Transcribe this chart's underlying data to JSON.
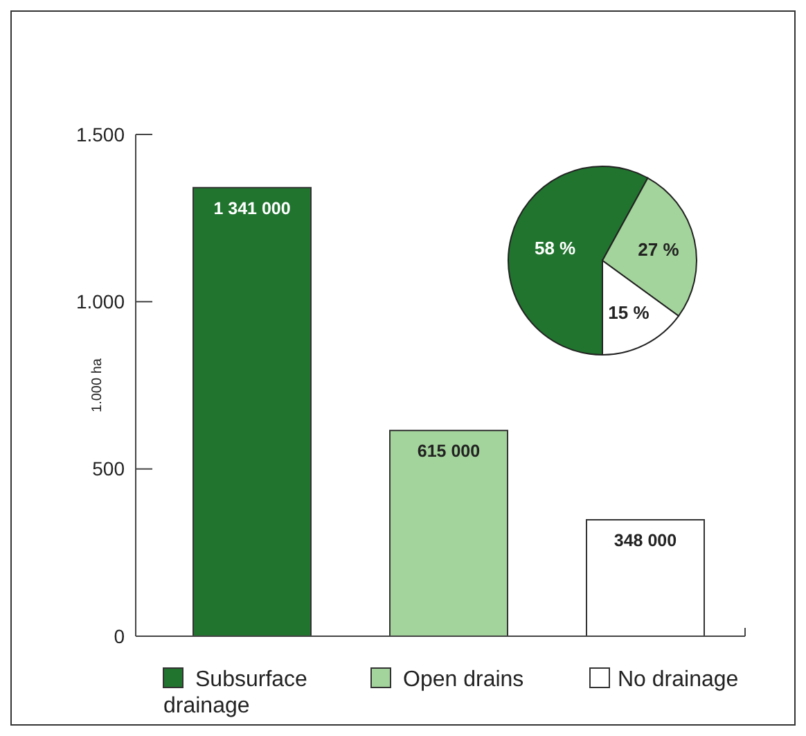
{
  "chart_data": [
    {
      "type": "bar",
      "ylabel": "1.000 ha",
      "categories": [
        null,
        null,
        null
      ],
      "series": [
        {
          "name": "Subsurface drainage",
          "color": "#20742e",
          "values": [
            1341,
            null,
            null
          ]
        },
        {
          "name": "Open drains",
          "color": "#a3d49b",
          "values": [
            null,
            615,
            null
          ]
        },
        {
          "name": "No drainage",
          "color": "#ffffff",
          "values": [
            null,
            null,
            348
          ]
        }
      ],
      "annotations": [
        {
          "text": "1 341 000",
          "y": 1341
        },
        {
          "text": "615 000",
          "y": 615
        },
        {
          "text": "348 000",
          "y": 348
        }
      ],
      "ylim": [
        0,
        1500
      ],
      "yticks": [
        0,
        500,
        {
          "value": 1000,
          "label": "1.000"
        },
        {
          "value": 1500,
          "label": "1.500"
        }
      ],
      "grid": false,
      "legend": "bottom"
    },
    {
      "type": "pie",
      "categories": [
        null,
        null,
        null
      ],
      "values": [
        58,
        27,
        15
      ],
      "colors": [
        "#20742e",
        "#a3d49b",
        "#ffffff"
      ],
      "value_labels": [
        "58 %",
        "27 %",
        "15 %"
      ]
    }
  ]
}
